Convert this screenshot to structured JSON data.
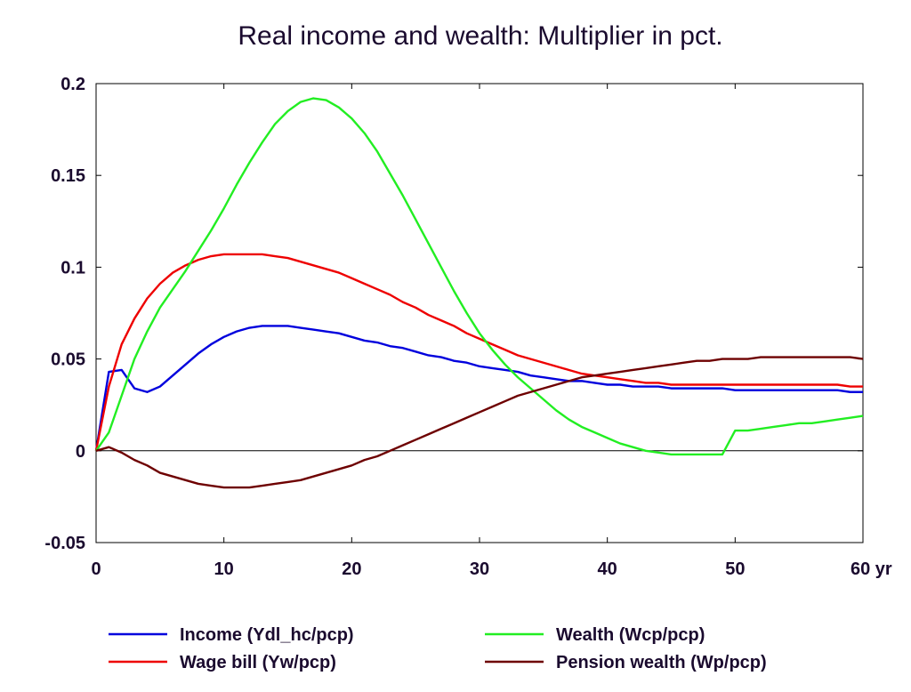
{
  "chart_data": {
    "type": "line",
    "title": "Real income and wealth: Multiplier in pct.",
    "xlabel": "",
    "ylabel": "",
    "x_unit_label": "yr",
    "xlim": [
      0,
      60
    ],
    "ylim": [
      -0.05,
      0.2
    ],
    "x_ticks": [
      0,
      10,
      20,
      30,
      40,
      50,
      60
    ],
    "x_tick_labels": [
      "0",
      "10",
      "20",
      "30",
      "40",
      "50",
      "60 yr"
    ],
    "y_ticks": [
      -0.05,
      0,
      0.05,
      0.1,
      0.15,
      0.2
    ],
    "y_tick_labels": [
      "-0.05",
      "0",
      "0.05",
      "0.1",
      "0.15",
      "0.2"
    ],
    "grid": false,
    "zero_line": true,
    "legend_position": "bottom",
    "x": [
      0,
      1,
      2,
      3,
      4,
      5,
      6,
      7,
      8,
      9,
      10,
      11,
      12,
      13,
      14,
      15,
      16,
      17,
      18,
      19,
      20,
      21,
      22,
      23,
      24,
      25,
      26,
      27,
      28,
      29,
      30,
      31,
      32,
      33,
      34,
      35,
      36,
      37,
      38,
      39,
      40,
      41,
      42,
      43,
      44,
      45,
      46,
      47,
      48,
      49,
      50,
      51,
      52,
      53,
      54,
      55,
      56,
      57,
      58,
      59,
      60
    ],
    "series": [
      {
        "name": "Income (Ydl_hc/pcp)",
        "color": "#0000dd",
        "values": [
          0,
          0.043,
          0.044,
          0.034,
          0.032,
          0.035,
          0.041,
          0.047,
          0.053,
          0.058,
          0.062,
          0.065,
          0.067,
          0.068,
          0.068,
          0.068,
          0.067,
          0.066,
          0.065,
          0.064,
          0.062,
          0.06,
          0.059,
          0.057,
          0.056,
          0.054,
          0.052,
          0.051,
          0.049,
          0.048,
          0.046,
          0.045,
          0.044,
          0.043,
          0.041,
          0.04,
          0.039,
          0.038,
          0.038,
          0.037,
          0.036,
          0.036,
          0.035,
          0.035,
          0.035,
          0.034,
          0.034,
          0.034,
          0.034,
          0.034,
          0.033,
          0.033,
          0.033,
          0.033,
          0.033,
          0.033,
          0.033,
          0.033,
          0.033,
          0.032,
          0.032
        ]
      },
      {
        "name": "Wage bill (Yw/pcp)",
        "color": "#ee0000",
        "values": [
          0,
          0.035,
          0.058,
          0.072,
          0.083,
          0.091,
          0.097,
          0.101,
          0.104,
          0.106,
          0.107,
          0.107,
          0.107,
          0.107,
          0.106,
          0.105,
          0.103,
          0.101,
          0.099,
          0.097,
          0.094,
          0.091,
          0.088,
          0.085,
          0.081,
          0.078,
          0.074,
          0.071,
          0.068,
          0.064,
          0.061,
          0.058,
          0.055,
          0.052,
          0.05,
          0.048,
          0.046,
          0.044,
          0.042,
          0.041,
          0.04,
          0.039,
          0.038,
          0.037,
          0.037,
          0.036,
          0.036,
          0.036,
          0.036,
          0.036,
          0.036,
          0.036,
          0.036,
          0.036,
          0.036,
          0.036,
          0.036,
          0.036,
          0.036,
          0.035,
          0.035
        ]
      },
      {
        "name": "Wealth (Wcp/pcp)",
        "color": "#22ee22",
        "values": [
          0,
          0.01,
          0.03,
          0.05,
          0.065,
          0.078,
          0.088,
          0.098,
          0.109,
          0.12,
          0.132,
          0.145,
          0.157,
          0.168,
          0.178,
          0.185,
          0.19,
          0.192,
          0.191,
          0.187,
          0.181,
          0.173,
          0.163,
          0.151,
          0.139,
          0.126,
          0.113,
          0.1,
          0.087,
          0.075,
          0.064,
          0.055,
          0.047,
          0.04,
          0.034,
          0.028,
          0.022,
          0.017,
          0.013,
          0.01,
          0.007,
          0.004,
          0.002,
          0,
          -0.001,
          -0.002,
          -0.002,
          -0.002,
          -0.002,
          -0.002,
          0.011,
          0.011,
          0.012,
          0.013,
          0.014,
          0.015,
          0.015,
          0.016,
          0.017,
          0.018,
          0.019
        ]
      },
      {
        "name": "Pension wealth (Wp/pcp)",
        "color": "#6e0000",
        "values": [
          0,
          0.002,
          -0.001,
          -0.005,
          -0.008,
          -0.012,
          -0.014,
          -0.016,
          -0.018,
          -0.019,
          -0.02,
          -0.02,
          -0.02,
          -0.019,
          -0.018,
          -0.017,
          -0.016,
          -0.014,
          -0.012,
          -0.01,
          -0.008,
          -0.005,
          -0.003,
          0,
          0.003,
          0.006,
          0.009,
          0.012,
          0.015,
          0.018,
          0.021,
          0.024,
          0.027,
          0.03,
          0.032,
          0.034,
          0.036,
          0.038,
          0.04,
          0.041,
          0.042,
          0.043,
          0.044,
          0.045,
          0.046,
          0.047,
          0.048,
          0.049,
          0.049,
          0.05,
          0.05,
          0.05,
          0.051,
          0.051,
          0.051,
          0.051,
          0.051,
          0.051,
          0.051,
          0.051,
          0.05
        ]
      }
    ]
  }
}
